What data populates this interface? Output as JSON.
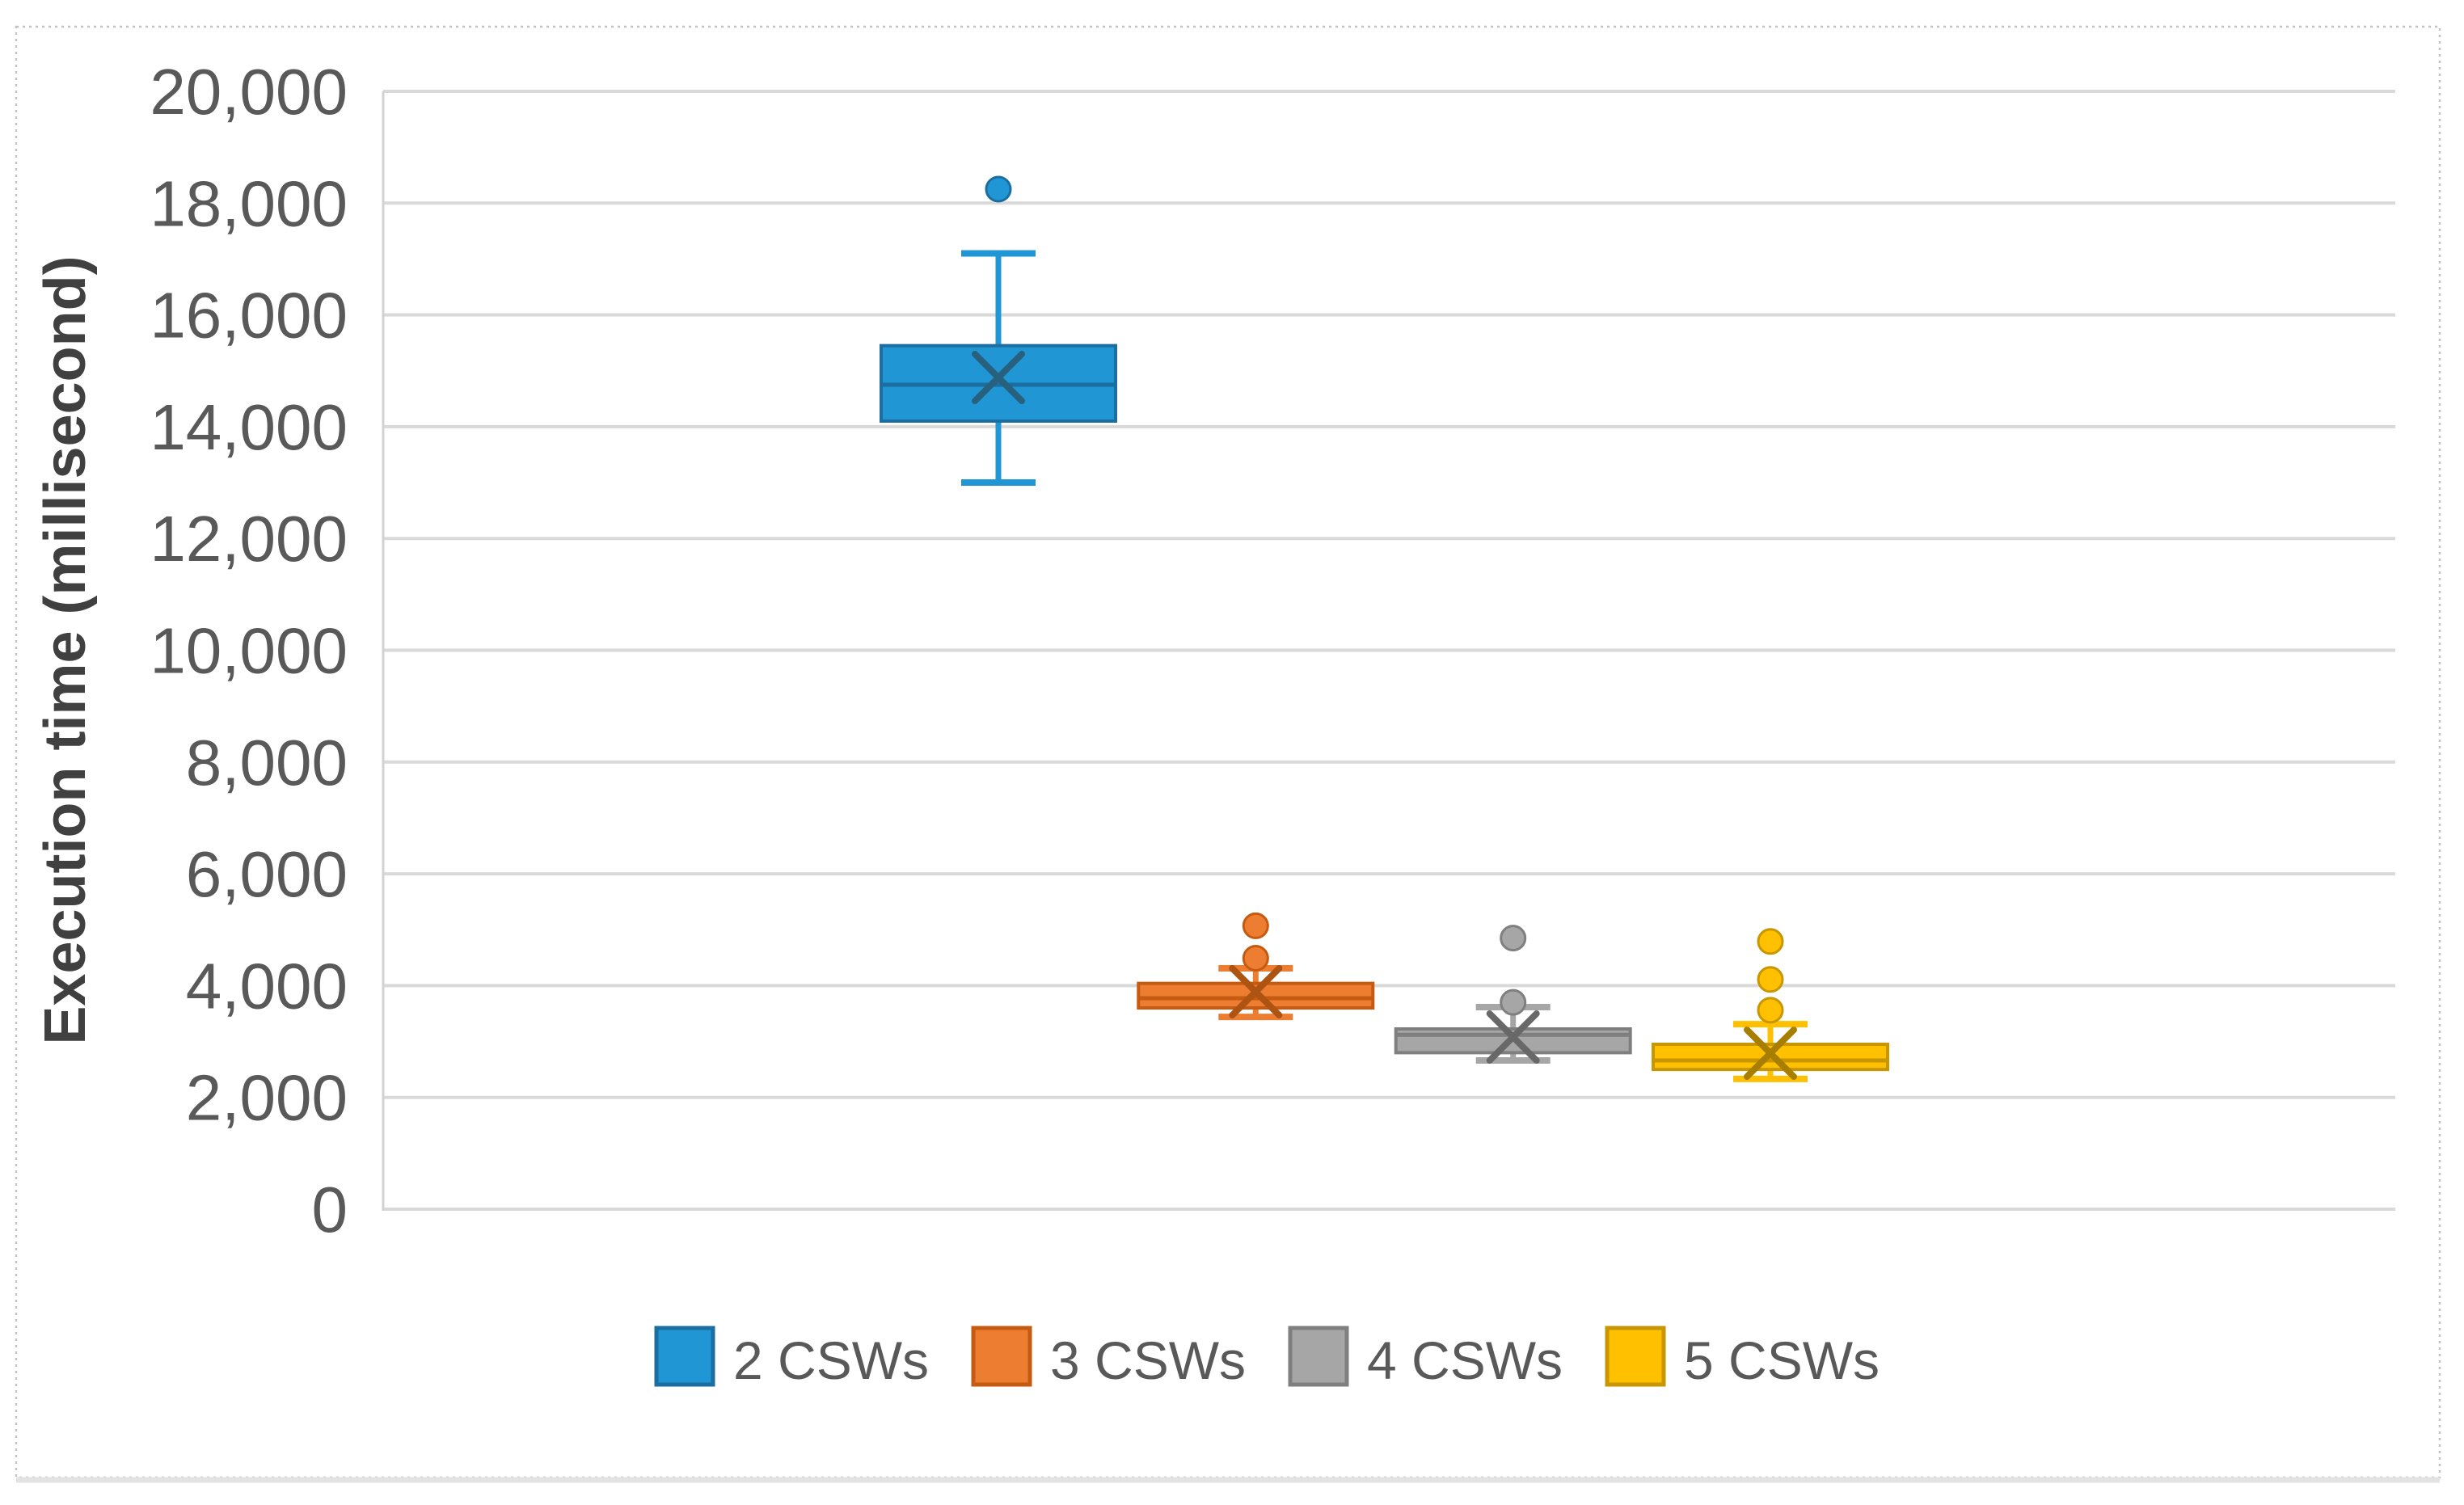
{
  "figure": {
    "background_color": "#FFFFFF",
    "border_color": "#C3C3C3",
    "bottom_edge_color": "#E3E3E3"
  },
  "chart_data": {
    "type": "boxplot",
    "title": "",
    "xlabel": "",
    "ylabel": "Execution time (millisecond)",
    "grid": true,
    "legend_position": "bottom",
    "y_axis": {
      "min": 0,
      "max": 20000,
      "step": 2000,
      "tick_labels": [
        "0",
        "2,000",
        "4,000",
        "6,000",
        "8,000",
        "10,000",
        "12,000",
        "14,000",
        "16,000",
        "18,000",
        "20,000"
      ],
      "tick_label_color": "#595959",
      "gridline_color": "#D9D9D9",
      "axis_line_color": "#D2D2D2",
      "title_color": "#404040"
    },
    "legend_label_color": "#595959",
    "series": [
      {
        "name": "2 CSWs",
        "fill_color": "#2196D4",
        "border_color": "#1B6E9F",
        "marker_color": "#27617E",
        "min": 13000,
        "q1": 14100,
        "median": 14750,
        "q3": 15450,
        "max": 17100,
        "mean": 14880,
        "outliers": [
          18250
        ]
      },
      {
        "name": "3 CSWs",
        "fill_color": "#ED7D31",
        "border_color": "#C55A11",
        "marker_color": "#AE5413",
        "min": 3440,
        "q1": 3600,
        "median": 3775,
        "q3": 4040,
        "max": 4310,
        "mean": 3890,
        "outliers": [
          5070,
          4490
        ]
      },
      {
        "name": "4 CSWs",
        "fill_color": "#A6A6A6",
        "border_color": "#7F7F7F",
        "marker_color": "#686868",
        "min": 2660,
        "q1": 2800,
        "median": 3120,
        "q3": 3225,
        "max": 3615,
        "mean": 3080,
        "outliers": [
          4850,
          3700
        ]
      },
      {
        "name": "5 CSWs",
        "fill_color": "#FFC000",
        "border_color": "#C79600",
        "marker_color": "#A87E00",
        "min": 2330,
        "q1": 2500,
        "median": 2660,
        "q3": 2950,
        "max": 3310,
        "mean": 2790,
        "outliers": [
          4790,
          4110,
          3560
        ]
      }
    ]
  }
}
